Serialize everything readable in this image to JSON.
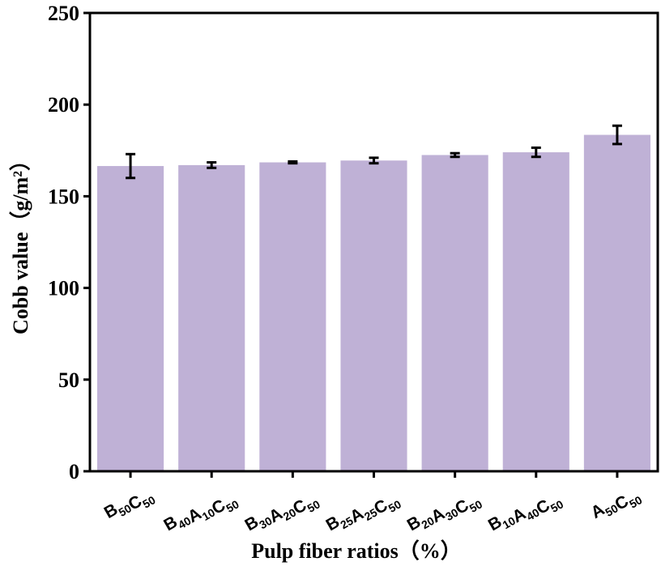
{
  "chart_data": {
    "type": "bar",
    "xlabel": "Pulp fiber ratios（%）",
    "ylabel": "Cobb value（g/m²）",
    "ylim": [
      0,
      250
    ],
    "yticks": [
      0,
      50,
      100,
      150,
      200,
      250
    ],
    "grid": false,
    "bar_color": "#bfb1d6",
    "categories": [
      [
        {
          "t": "B",
          "s": "50"
        },
        {
          "t": "C",
          "s": "50"
        }
      ],
      [
        {
          "t": "B",
          "s": "40"
        },
        {
          "t": "A",
          "s": "10"
        },
        {
          "t": "C",
          "s": "50"
        }
      ],
      [
        {
          "t": "B",
          "s": "30"
        },
        {
          "t": "A",
          "s": "20"
        },
        {
          "t": "C",
          "s": "50"
        }
      ],
      [
        {
          "t": "B",
          "s": "25"
        },
        {
          "t": "A",
          "s": "25"
        },
        {
          "t": "C",
          "s": "50"
        }
      ],
      [
        {
          "t": "B",
          "s": "20"
        },
        {
          "t": "A",
          "s": "30"
        },
        {
          "t": "C",
          "s": "50"
        }
      ],
      [
        {
          "t": "B",
          "s": "10"
        },
        {
          "t": "A",
          "s": "40"
        },
        {
          "t": "C",
          "s": "50"
        }
      ],
      [
        {
          "t": "A",
          "s": "50"
        },
        {
          "t": "C",
          "s": "50"
        }
      ]
    ],
    "values": [
      166.5,
      167,
      168.5,
      169.5,
      172.5,
      174,
      183.5
    ],
    "errors": [
      6.5,
      1.5,
      0.5,
      1.5,
      1,
      2.5,
      5
    ]
  }
}
